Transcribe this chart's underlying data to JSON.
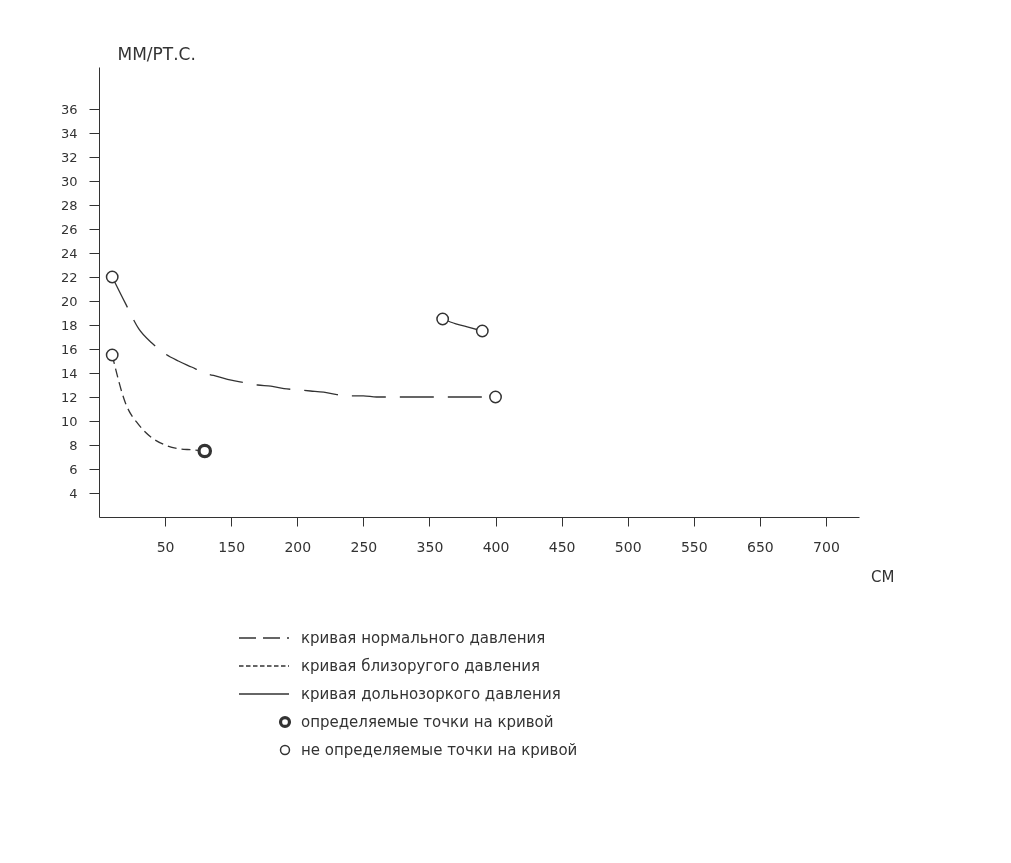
{
  "chart_data": {
    "type": "line",
    "xlabel": "СМ",
    "ylabel": "ММ/РТ.С.",
    "ylim": [
      2,
      39.5
    ],
    "categories": [
      null,
      null,
      null,
      null,
      null,
      "50",
      null,
      null,
      null,
      null,
      "150",
      null,
      null,
      null,
      null,
      "200",
      null,
      null,
      null,
      null,
      "250",
      null,
      null,
      null,
      null,
      "350",
      null,
      null,
      null,
      null,
      "400",
      null,
      null,
      null,
      null,
      "450",
      null,
      null,
      null,
      null,
      "500",
      null,
      null,
      null,
      null,
      "550",
      null,
      null,
      null,
      null,
      "650",
      null,
      null,
      null,
      null,
      "700",
      null,
      null
    ],
    "yticks": [
      4,
      6,
      8,
      10,
      12,
      14,
      16,
      18,
      20,
      22,
      24,
      26,
      28,
      30,
      32,
      34,
      36
    ],
    "grid": false,
    "legend": "bottom",
    "series": [
      {
        "name": "кривая нормального давления",
        "line_style": "dashed",
        "color": "#333333",
        "values": [
          null,
          22,
          19.8,
          17.7,
          16.5,
          15.6,
          15.0,
          14.5,
          14.0,
          13.7,
          13.4,
          13.2,
          13.0,
          12.9,
          12.7,
          12.6,
          12.5,
          12.4,
          12.2,
          12.1,
          12.1,
          12.0,
          12,
          12,
          12,
          12,
          12,
          12,
          12,
          12,
          12,
          null,
          null,
          null,
          null,
          null,
          null,
          null,
          null,
          null,
          null,
          null,
          null,
          null,
          null,
          null,
          null,
          null,
          null,
          null,
          null,
          null,
          null,
          null,
          null,
          null,
          null,
          null
        ]
      },
      {
        "name": "кривая близоругого давления",
        "line_style": "dashed",
        "color": "#333333",
        "values": [
          null,
          15.5,
          11.5,
          9.7,
          8.6,
          8.0,
          7.7,
          7.6,
          7.5,
          null,
          null,
          null,
          null,
          null,
          null,
          null,
          null,
          null,
          null,
          null,
          null,
          null,
          null,
          null,
          null,
          null,
          null,
          null,
          null,
          null,
          null,
          null,
          null,
          null,
          null,
          null,
          null,
          null,
          null,
          null,
          null,
          null,
          null,
          null,
          null,
          null,
          null,
          null,
          null,
          null,
          null,
          null,
          null,
          null,
          null,
          null,
          null,
          null
        ]
      },
      {
        "name": "кривая дольнозоркого давления",
        "line_style": "solid",
        "color": "#333333",
        "values": [
          null,
          null,
          null,
          null,
          null,
          null,
          null,
          null,
          null,
          null,
          null,
          null,
          null,
          null,
          null,
          null,
          null,
          null,
          null,
          null,
          null,
          null,
          null,
          null,
          null,
          null,
          18.5,
          18.1,
          17.8,
          17.5,
          null,
          null,
          null,
          null,
          null,
          null,
          null,
          null,
          null,
          null,
          null,
          null,
          null,
          null,
          null,
          null,
          null,
          null,
          null,
          null,
          null,
          null,
          null,
          null,
          null,
          null,
          null,
          null
        ]
      },
      {
        "name": "определяемые точки на кривой",
        "type": "scatter",
        "marker": "circle",
        "color": "#333333",
        "values": [
          null,
          null,
          null,
          null,
          null,
          null,
          null,
          null,
          7.5,
          null,
          null,
          null,
          null,
          null,
          null,
          null,
          null,
          null,
          null,
          null,
          null,
          null,
          null,
          null,
          null,
          null,
          null,
          null,
          null,
          null,
          null,
          null,
          null,
          null,
          null,
          null,
          null,
          null,
          null,
          null,
          null,
          null,
          null,
          null,
          null,
          null,
          null,
          null,
          null,
          null,
          null,
          null,
          null,
          null,
          null,
          null,
          null,
          null
        ]
      },
      {
        "name": "не определяемые точки на кривой",
        "type": "scatter",
        "marker": "circle",
        "color": "#333333",
        "values": [
          null,
          22,
          null,
          null,
          null,
          null,
          null,
          null,
          null,
          null,
          null,
          null,
          null,
          null,
          null,
          null,
          null,
          null,
          null,
          null,
          null,
          null,
          null,
          null,
          null,
          null,
          18.5,
          null,
          null,
          17.5,
          12,
          null,
          null,
          null,
          null,
          null,
          null,
          null,
          null,
          null,
          null,
          null,
          null,
          null,
          null,
          null,
          null,
          null,
          null,
          null,
          null,
          null,
          null,
          null,
          null,
          null,
          null,
          null
        ]
      },
      {
        "type": "scatter",
        "marker": "circle",
        "color": "#333333",
        "values": [
          null,
          15.5,
          null,
          null,
          null,
          null,
          null,
          null,
          null,
          null,
          null,
          null,
          null,
          null,
          null,
          null,
          null,
          null,
          null,
          null,
          null,
          null,
          null,
          null,
          null,
          null,
          null,
          null,
          null,
          null,
          null,
          null,
          null,
          null,
          null,
          null,
          null,
          null,
          null,
          null,
          null,
          null,
          null,
          null,
          null,
          null,
          null,
          null,
          null,
          null,
          null,
          null,
          null,
          null,
          null,
          null,
          null,
          null
        ]
      }
    ]
  }
}
